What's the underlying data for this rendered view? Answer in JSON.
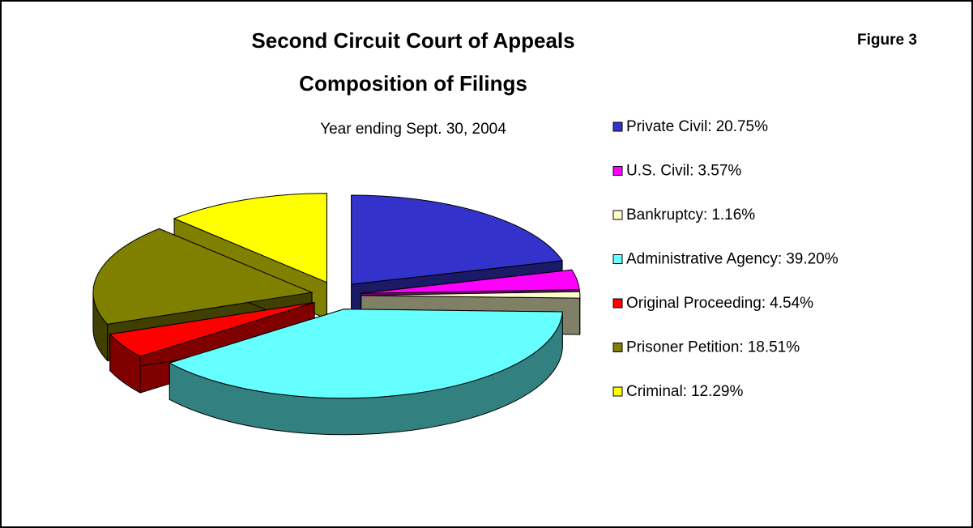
{
  "chart_data": {
    "type": "pie",
    "title": "Second Circuit Court of Appeals",
    "title_line2": "Composition of Filings",
    "subtitle": "Year ending Sept. 30, 2004",
    "annotation": "Figure 3",
    "categories": [
      "Private Civil:",
      "U.S. Civil:",
      "Bankruptcy:",
      "Administrative Agency:",
      "Original Proceeding:",
      "Prisoner Petition:",
      "Criminal:"
    ],
    "values": [
      20.75,
      3.57,
      1.16,
      39.2,
      4.54,
      18.51,
      12.29
    ],
    "value_labels": [
      "20.75%",
      "3.57%",
      "1.16%",
      "39.20%",
      "4.54%",
      "18.51%",
      "12.29%"
    ],
    "colors": [
      "#3333cc",
      "#ff00ff",
      "#ffffcc",
      "#66ffff",
      "#ff0000",
      "#808000",
      "#ffff00"
    ],
    "legend": "right"
  }
}
